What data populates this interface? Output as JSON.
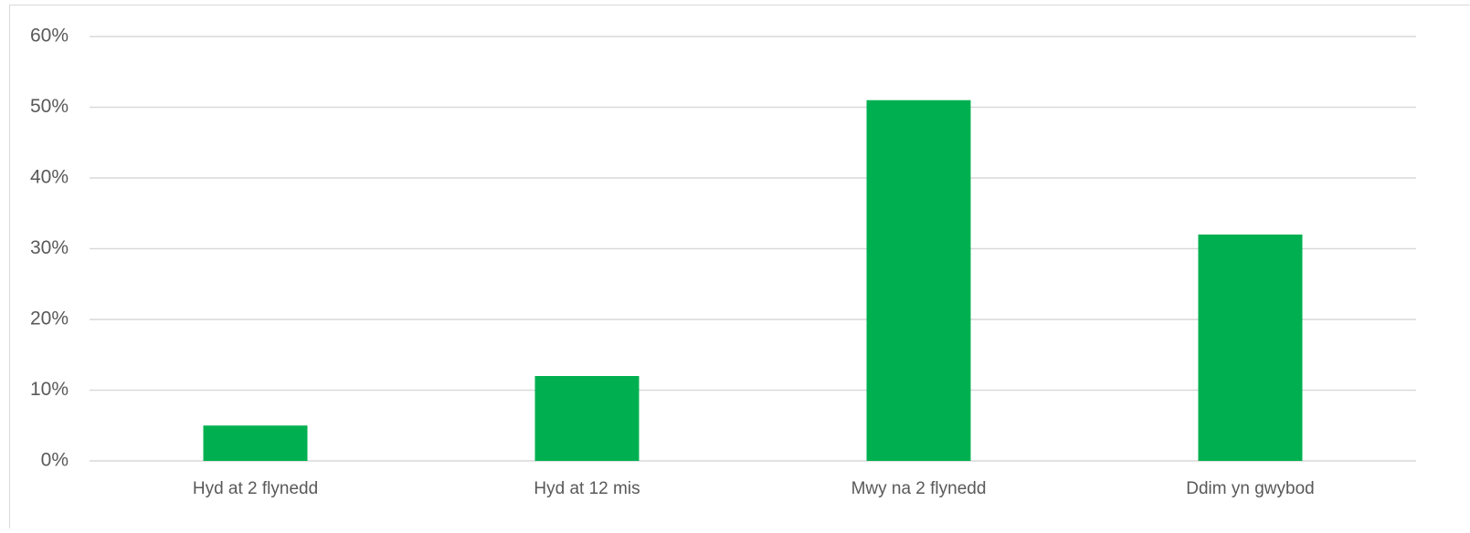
{
  "chart_data": {
    "type": "bar",
    "categories": [
      "Hyd at 2 flynedd",
      "Hyd at 12 mis",
      "Mwy na 2 flynedd",
      "Ddim yn gwybod"
    ],
    "values": [
      5,
      12,
      51,
      32
    ],
    "color": "#00b050",
    "ylim": [
      0,
      60
    ],
    "yticks": [
      {
        "value": 0,
        "label": "0%"
      },
      {
        "value": 10,
        "label": "10%"
      },
      {
        "value": 20,
        "label": "20%"
      },
      {
        "value": 30,
        "label": "30%"
      },
      {
        "value": 40,
        "label": "40%"
      },
      {
        "value": 50,
        "label": "50%"
      },
      {
        "value": 60,
        "label": "60%"
      }
    ],
    "grid": true
  }
}
